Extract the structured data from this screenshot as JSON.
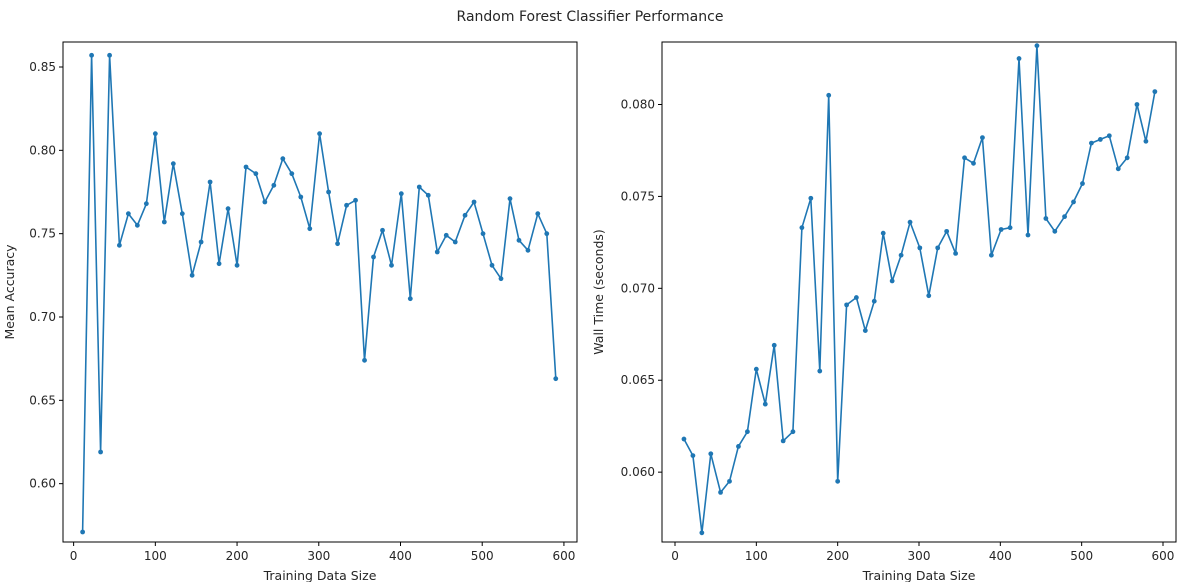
{
  "figure": {
    "title": "Random Forest Classifier Performance"
  },
  "chart_data": [
    {
      "type": "line",
      "xlabel": "Training Data Size",
      "ylabel": "Mean Accuracy",
      "xlim": [
        -13,
        616
      ],
      "ylim": [
        0.565,
        0.865
      ],
      "xticks": [
        0,
        100,
        200,
        300,
        400,
        500,
        600
      ],
      "xtick_labels": [
        "0",
        "100",
        "200",
        "300",
        "400",
        "500",
        "600"
      ],
      "yticks": [
        0.6,
        0.65,
        0.7,
        0.75,
        0.8,
        0.85
      ],
      "ytick_labels": [
        "0.60",
        "0.65",
        "0.70",
        "0.75",
        "0.80",
        "0.85"
      ],
      "grid": false,
      "color": "#1f77b4",
      "marker": "dot",
      "series": [
        {
          "x": [
            11,
            22,
            33,
            44,
            56,
            67,
            78,
            89,
            100,
            111,
            122,
            133,
            145,
            156,
            167,
            178,
            189,
            200,
            211,
            223,
            234,
            245,
            256,
            267,
            278,
            289,
            301,
            312,
            323,
            334,
            345,
            356,
            367,
            378,
            389,
            401,
            412,
            423,
            434,
            445,
            456,
            467,
            479,
            490,
            501,
            512,
            523,
            534,
            545,
            556,
            568,
            579,
            590
          ],
          "y": [
            0.571,
            0.857,
            0.619,
            0.857,
            0.743,
            0.762,
            0.755,
            0.768,
            0.81,
            0.757,
            0.792,
            0.762,
            0.725,
            0.745,
            0.781,
            0.732,
            0.765,
            0.731,
            0.79,
            0.786,
            0.769,
            0.779,
            0.795,
            0.786,
            0.772,
            0.753,
            0.81,
            0.775,
            0.744,
            0.767,
            0.77,
            0.674,
            0.736,
            0.752,
            0.731,
            0.774,
            0.711,
            0.778,
            0.773,
            0.739,
            0.749,
            0.745,
            0.761,
            0.769,
            0.75,
            0.731,
            0.723,
            0.771,
            0.746,
            0.74,
            0.762,
            0.75,
            0.663
          ]
        }
      ]
    },
    {
      "type": "line",
      "xlabel": "Training Data Size",
      "ylabel": "Wall Time (seconds)",
      "xlim": [
        -16,
        616
      ],
      "ylim": [
        0.0562,
        0.0834
      ],
      "xticks": [
        0,
        100,
        200,
        300,
        400,
        500,
        600
      ],
      "xtick_labels": [
        "0",
        "100",
        "200",
        "300",
        "400",
        "500",
        "600"
      ],
      "yticks": [
        0.06,
        0.065,
        0.07,
        0.075,
        0.08
      ],
      "ytick_labels": [
        "0.060",
        "0.065",
        "0.070",
        "0.075",
        "0.080"
      ],
      "grid": false,
      "color": "#1f77b4",
      "marker": "dot",
      "series": [
        {
          "x": [
            11,
            22,
            33,
            44,
            56,
            67,
            78,
            89,
            100,
            111,
            122,
            133,
            145,
            156,
            167,
            178,
            189,
            200,
            211,
            223,
            234,
            245,
            256,
            267,
            278,
            289,
            301,
            312,
            323,
            334,
            345,
            356,
            367,
            378,
            389,
            401,
            412,
            423,
            434,
            445,
            456,
            467,
            479,
            490,
            501,
            512,
            523,
            534,
            545,
            556,
            568,
            579,
            590
          ],
          "y": [
            0.0618,
            0.0609,
            0.0567,
            0.061,
            0.0589,
            0.0595,
            0.0614,
            0.0622,
            0.0656,
            0.0637,
            0.0669,
            0.0617,
            0.0622,
            0.0733,
            0.0749,
            0.0655,
            0.0805,
            0.0595,
            0.0691,
            0.0695,
            0.0677,
            0.0693,
            0.073,
            0.0704,
            0.0718,
            0.0736,
            0.0722,
            0.0696,
            0.0722,
            0.0731,
            0.0719,
            0.0771,
            0.0768,
            0.0782,
            0.0718,
            0.0732,
            0.0733,
            0.0825,
            0.0729,
            0.0832,
            0.0738,
            0.0731,
            0.0739,
            0.0747,
            0.0757,
            0.0779,
            0.0781,
            0.0783,
            0.0765,
            0.0771,
            0.08,
            0.078,
            0.0807
          ]
        }
      ]
    }
  ]
}
